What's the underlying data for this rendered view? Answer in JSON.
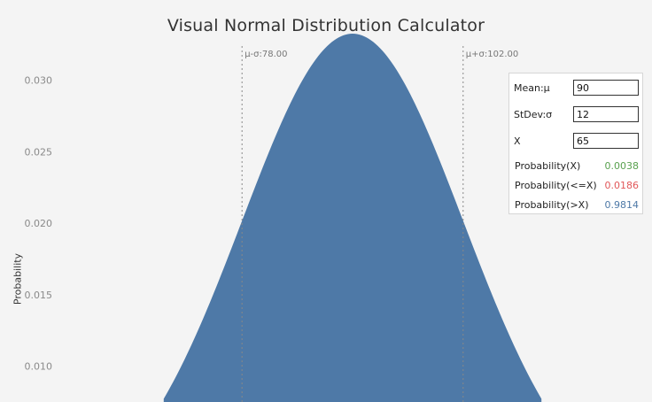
{
  "title": "Visual Normal Distribution Calculator",
  "colors": {
    "curve_fill": "#4e79a7",
    "green": "#59a14f",
    "red": "#e15759",
    "blue": "#4e79a7"
  },
  "panel": {
    "mean_label": "Mean:μ",
    "mean_value": "90",
    "stdev_label": "StDev:σ",
    "stdev_value": "12",
    "x_label": "X",
    "x_value": "65",
    "prob_x_label": "Probability(X)",
    "prob_x_value": "0.0038",
    "prob_le_label": "Probability(<=X)",
    "prob_le_value": "0.0186",
    "prob_gt_label": "Probability(>X)",
    "prob_gt_value": "0.9814"
  },
  "chart_data": {
    "type": "area",
    "title": "Visual Normal Distribution Calculator",
    "ylabel": "Probability",
    "xlabel": "",
    "mean": 90,
    "stdev": 12,
    "x_visible": [
      57.5,
      122.5
    ],
    "ylim": [
      0.0075,
      0.0356
    ],
    "yticks": [
      0.01,
      0.015,
      0.02,
      0.025,
      0.03
    ],
    "ytick_labels": [
      "0.010",
      "0.015",
      "0.020",
      "0.025",
      "0.030"
    ],
    "peak_probability": 0.0332,
    "reference_lines": [
      {
        "label": "μ-σ:78.00",
        "x": 78
      },
      {
        "label": "μ+σ:102.00",
        "x": 102
      }
    ],
    "grid": false
  }
}
